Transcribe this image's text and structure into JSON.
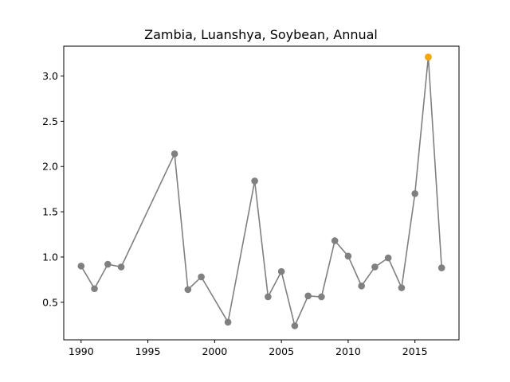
{
  "chart_data": {
    "type": "line",
    "title": "Zambia, Luanshya, Soybean, Annual",
    "xlabel": "",
    "ylabel": "",
    "xlim": [
      1988.7,
      2018.3
    ],
    "ylim": [
      0.085,
      3.33
    ],
    "xticks": [
      1990,
      1995,
      2000,
      2005,
      2010,
      2015
    ],
    "yticks": [
      0.5,
      1.0,
      1.5,
      2.0,
      2.5,
      3.0
    ],
    "xtick_labels": [
      "1990",
      "1995",
      "2000",
      "2005",
      "2010",
      "2015"
    ],
    "ytick_labels": [
      "0.5",
      "1.0",
      "1.5",
      "2.0",
      "2.5",
      "3.0"
    ],
    "grid": false,
    "series": [
      {
        "color": "#808080",
        "points": [
          {
            "x": 1990,
            "y": 0.9
          },
          {
            "x": 1991,
            "y": 0.65
          },
          {
            "x": 1992,
            "y": 0.92
          },
          {
            "x": 1993,
            "y": 0.89
          },
          {
            "x": 1997,
            "y": 2.14
          },
          {
            "x": 1998,
            "y": 0.64
          },
          {
            "x": 1999,
            "y": 0.78
          },
          {
            "x": 2001,
            "y": 0.28
          },
          {
            "x": 2003,
            "y": 1.84
          },
          {
            "x": 2004,
            "y": 0.56
          },
          {
            "x": 2005,
            "y": 0.84
          },
          {
            "x": 2006,
            "y": 0.24
          },
          {
            "x": 2007,
            "y": 0.57
          },
          {
            "x": 2008,
            "y": 0.56
          },
          {
            "x": 2009,
            "y": 1.18
          },
          {
            "x": 2010,
            "y": 1.01
          },
          {
            "x": 2011,
            "y": 0.68
          },
          {
            "x": 2012,
            "y": 0.89
          },
          {
            "x": 2013,
            "y": 0.99
          },
          {
            "x": 2014,
            "y": 0.66
          },
          {
            "x": 2015,
            "y": 1.7
          },
          {
            "x": 2016,
            "y": 3.21
          },
          {
            "x": 2017,
            "y": 0.88
          }
        ]
      }
    ],
    "highlight": {
      "x": 2016,
      "y": 3.21,
      "color": "#ffa500"
    }
  }
}
